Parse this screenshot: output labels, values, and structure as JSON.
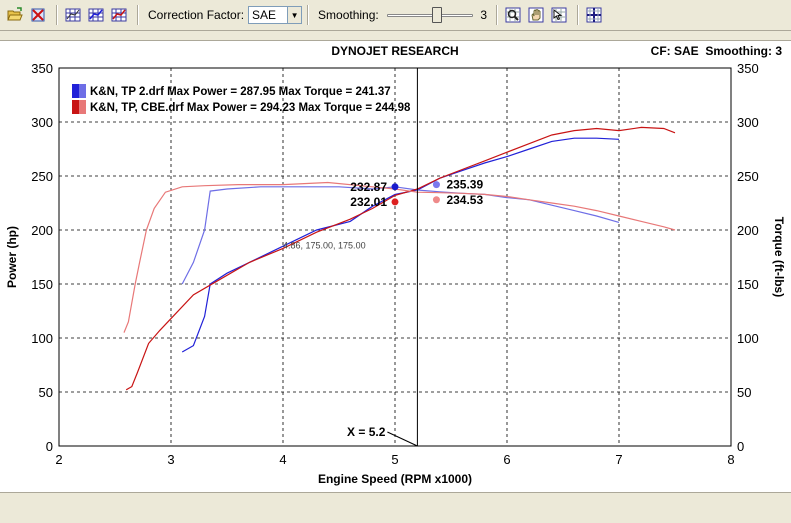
{
  "toolbar": {
    "correction_label": "Correction Factor:",
    "correction_value": "SAE",
    "smoothing_label": "Smoothing:",
    "smoothing_value": "3",
    "smoothing_level": 0.6
  },
  "header": {
    "title": "DYNOJET RESEARCH",
    "cf_label": "CF: SAE  Smoothing: 3"
  },
  "colors": {
    "run1": "#2121d8",
    "run2": "#c81414",
    "run1_torque": "#6e6ee6",
    "run2_torque": "#e87878",
    "cursor_run1_hp": "#1a1acc",
    "cursor_run1_tq": "#7a7aee",
    "cursor_run2_hp": "#dd2020",
    "cursor_run2_tq": "#ee8a8a"
  },
  "icons": [
    "open-file-icon",
    "close-file-icon",
    "grid-icon",
    "grid-blue-icon",
    "grid-red-icon",
    "zoom-icon",
    "hand-icon",
    "select-icon",
    "crosshair-icon"
  ],
  "chart_data": {
    "type": "line",
    "title": "DYNOJET RESEARCH",
    "xlabel": "Engine Speed (RPM x1000)",
    "ylabel": "Power (hp)",
    "y2label": "Torque (ft-lbs)",
    "xlim": [
      2,
      8
    ],
    "ylim": [
      0,
      350
    ],
    "y2lim": [
      0,
      350
    ],
    "xticks": [
      "2",
      "3",
      "4",
      "5",
      "6",
      "7",
      "8"
    ],
    "yticks": [
      "0",
      "50",
      "100",
      "150",
      "200",
      "250",
      "300",
      "350"
    ],
    "grid": true,
    "legend_position": "top-left",
    "legend": [
      "K&N, TP 2.drf Max Power = 287.95 Max Torque = 241.37",
      "K&N, TP, CBE.drf Max Power = 294.23 Max Torque = 244.98"
    ],
    "series": [
      {
        "name": "K&N, TP 2.drf",
        "kind": "power",
        "x": [
          3.1,
          3.2,
          3.3,
          3.35,
          3.5,
          3.7,
          4.0,
          4.3,
          4.6,
          4.8,
          5.0,
          5.2,
          5.4,
          5.6,
          5.8,
          6.0,
          6.2,
          6.4,
          6.6,
          6.8,
          7.0
        ],
        "y": [
          87,
          93,
          120,
          150,
          160,
          170,
          185,
          200,
          208,
          222,
          232.87,
          237,
          248,
          255,
          262,
          268,
          275,
          282,
          285,
          285,
          284
        ]
      },
      {
        "name": "K&N, TP 2.drf",
        "kind": "torque",
        "x": [
          3.1,
          3.2,
          3.3,
          3.35,
          3.5,
          3.8,
          4.2,
          4.5,
          4.8,
          5.0,
          5.2,
          5.4,
          5.6,
          5.8,
          6.0,
          6.2,
          6.4,
          6.6,
          6.8,
          7.0
        ],
        "y": [
          150,
          170,
          200,
          236,
          238,
          240,
          240,
          240,
          238,
          240,
          237,
          235.39,
          234,
          233,
          230,
          228,
          223,
          218,
          213,
          207
        ]
      },
      {
        "name": "K&N, TP, CBE.drf",
        "kind": "power",
        "x": [
          2.6,
          2.65,
          2.7,
          2.8,
          2.9,
          3.0,
          3.2,
          3.4,
          3.7,
          4.0,
          4.3,
          4.6,
          4.8,
          5.0,
          5.2,
          5.4,
          5.6,
          5.8,
          6.0,
          6.2,
          6.4,
          6.6,
          6.8,
          7.0,
          7.2,
          7.4,
          7.5
        ],
        "y": [
          52,
          55,
          68,
          95,
          107,
          118,
          140,
          152,
          170,
          183,
          198,
          210,
          220,
          232.01,
          238,
          248,
          256,
          264,
          272,
          280,
          288,
          292,
          294,
          292,
          295,
          294,
          290
        ]
      },
      {
        "name": "K&N, TP, CBE.drf",
        "kind": "torque",
        "x": [
          2.58,
          2.62,
          2.68,
          2.72,
          2.78,
          2.85,
          2.95,
          3.1,
          3.3,
          3.6,
          4.0,
          4.4,
          4.8,
          5.0,
          5.2,
          5.4,
          5.6,
          5.8,
          6.0,
          6.2,
          6.4,
          6.6,
          6.8,
          7.0,
          7.2,
          7.4,
          7.5
        ],
        "y": [
          105,
          115,
          150,
          170,
          200,
          220,
          235,
          240,
          241,
          242,
          242,
          244,
          240,
          238,
          235,
          234.53,
          234,
          233,
          231,
          228,
          225,
          222,
          218,
          213,
          208,
          203,
          200
        ]
      }
    ],
    "cursor": {
      "x": 5.2,
      "label": "X = 5.2",
      "values": [
        {
          "label": "232.87",
          "x": 5.0,
          "y": 240,
          "run": "run1",
          "kind": "power"
        },
        {
          "label": "235.39",
          "x": 5.37,
          "y": 242,
          "run": "run1",
          "kind": "torque"
        },
        {
          "label": "232.01",
          "x": 5.0,
          "y": 226,
          "run": "run2",
          "kind": "power"
        },
        {
          "label": "234.53",
          "x": 5.37,
          "y": 228,
          "run": "run2",
          "kind": "torque"
        }
      ]
    },
    "annotation": {
      "text": "4.86, 175.00, 175.00",
      "x": 4.0,
      "y": 183
    }
  }
}
